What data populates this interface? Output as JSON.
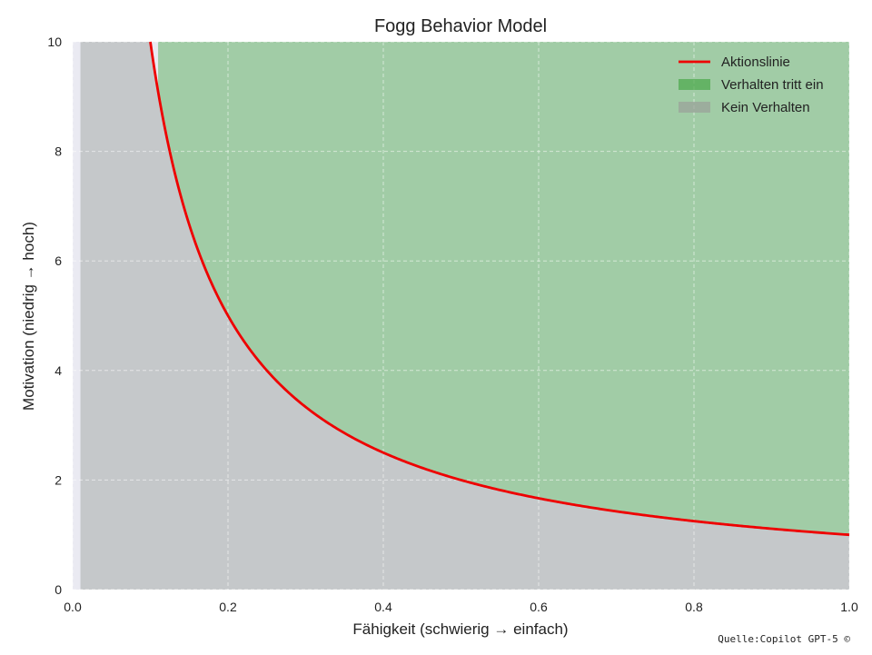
{
  "chart_data": {
    "type": "area",
    "title": "Fogg Behavior Model",
    "xlabel": "Fähigkeit (schwierig → einfach)",
    "ylabel": "Motivation (niedrig → hoch)",
    "xlim": [
      0.0,
      1.0
    ],
    "ylim": [
      0,
      10
    ],
    "x_ticks": [
      "0.0",
      "0.2",
      "0.4",
      "0.6",
      "0.8",
      "1.0"
    ],
    "y_ticks": [
      "0",
      "2",
      "4",
      "6",
      "8",
      "10"
    ],
    "grid": true,
    "legend_position": "top-right",
    "series": [
      {
        "name": "Aktionslinie",
        "kind": "line",
        "color": "#ee0000",
        "formula": "y = 1 / x",
        "x": [
          0.1,
          0.12,
          0.15,
          0.2,
          0.25,
          0.3,
          0.4,
          0.5,
          0.6,
          0.7,
          0.8,
          0.9,
          1.0
        ],
        "y": [
          10,
          8.33,
          6.67,
          5.0,
          4.0,
          3.33,
          2.5,
          2.0,
          1.67,
          1.43,
          1.25,
          1.11,
          1.0
        ]
      },
      {
        "name": "Verhalten tritt ein",
        "kind": "fill",
        "color": "#4aa84a",
        "region": "above line"
      },
      {
        "name": "Kein Verhalten",
        "kind": "fill",
        "color": "#9aa09a",
        "region": "below line"
      }
    ],
    "annotations": [
      "Quelle:Copilot GPT-5 ©"
    ]
  }
}
